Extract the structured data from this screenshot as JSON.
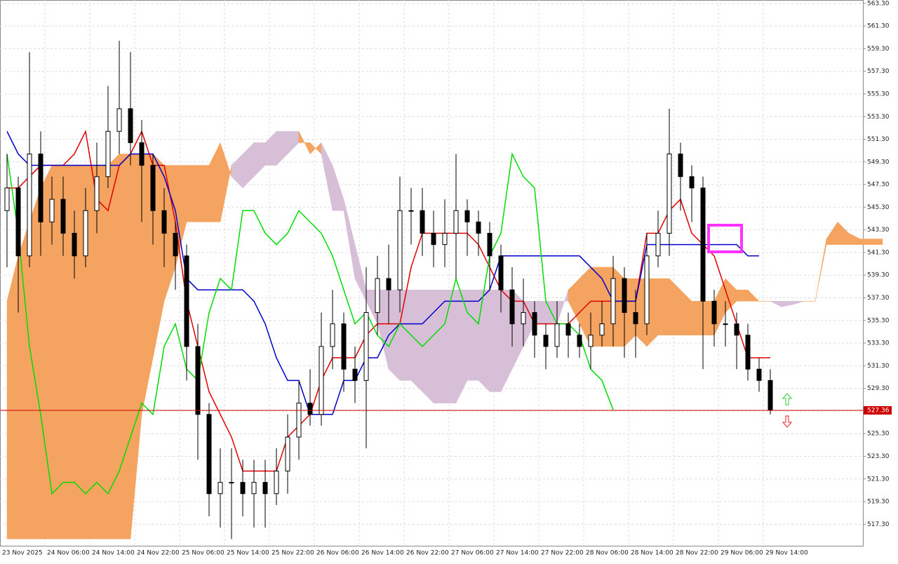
{
  "chart_data": {
    "type": "candlestick",
    "ylim": [
      515.4,
      563.6
    ],
    "yticks": [
      {
        "value": 517.3,
        "label": "517.30"
      },
      {
        "value": 519.3,
        "label": "519.30"
      },
      {
        "value": 521.3,
        "label": "521.30"
      },
      {
        "value": 523.3,
        "label": "523.30"
      },
      {
        "value": 525.3,
        "label": "525.30"
      },
      {
        "value": 527.3,
        "label": "527.30"
      },
      {
        "value": 529.3,
        "label": "529.30"
      },
      {
        "value": 531.3,
        "label": "531.30"
      },
      {
        "value": 533.3,
        "label": "533.30"
      },
      {
        "value": 535.3,
        "label": "535.30"
      },
      {
        "value": 537.3,
        "label": "537.30"
      },
      {
        "value": 539.3,
        "label": "539.30"
      },
      {
        "value": 541.3,
        "label": "541.30"
      },
      {
        "value": 543.3,
        "label": "543.30"
      },
      {
        "value": 545.3,
        "label": "545.30"
      },
      {
        "value": 547.3,
        "label": "547.30"
      },
      {
        "value": 549.3,
        "label": "549.30"
      },
      {
        "value": 551.3,
        "label": "551.30"
      },
      {
        "value": 553.3,
        "label": "553.30"
      },
      {
        "value": 555.3,
        "label": "555.30"
      },
      {
        "value": 557.3,
        "label": "557.30"
      },
      {
        "value": 559.3,
        "label": "559.30"
      },
      {
        "value": 561.3,
        "label": "561.30"
      },
      {
        "value": 563.3,
        "label": "563.30"
      }
    ],
    "xlabels": [
      "23 Nov 2025",
      "24 Nov 06:00",
      "24 Nov 14:00",
      "24 Nov 22:00",
      "25 Nov 06:00",
      "25 Nov 14:00",
      "25 Nov 22:00",
      "26 Nov 06:00",
      "26 Nov 14:00",
      "26 Nov 22:00",
      "27 Nov 06:00",
      "27 Nov 14:00",
      "27 Nov 22:00",
      "28 Nov 06:00",
      "28 Nov 14:00",
      "28 Nov 22:00",
      "29 Nov 06:00",
      "29 Nov 14:00"
    ],
    "grid": true,
    "candles": {
      "open": [
        545,
        547,
        541,
        550,
        544,
        546,
        543,
        541,
        545,
        548,
        552,
        554,
        551,
        549,
        545,
        543,
        541,
        533,
        527,
        520,
        521,
        521,
        520,
        521,
        520,
        522,
        525,
        528,
        527,
        533,
        535,
        531,
        530,
        536,
        539,
        538,
        545,
        545,
        543,
        542,
        543,
        545,
        544,
        543,
        541,
        538,
        535,
        536,
        534,
        533,
        535,
        534,
        533,
        534,
        535,
        539,
        536,
        535,
        541,
        543,
        550,
        548,
        547,
        537,
        535,
        535,
        534,
        531,
        530
      ],
      "high": [
        550,
        548,
        559,
        552,
        548,
        548,
        545,
        547,
        551,
        556,
        560,
        559,
        553,
        550,
        547,
        544,
        542,
        535,
        528,
        524,
        524,
        523,
        523,
        523,
        524,
        527,
        530,
        531,
        536,
        538,
        536,
        533,
        540,
        541,
        542,
        548,
        547,
        547,
        545,
        546,
        550,
        546,
        545,
        544,
        542,
        540,
        539,
        537,
        535,
        537,
        536,
        535,
        536,
        537,
        541,
        540,
        538,
        543,
        545,
        554,
        551,
        549,
        548,
        538,
        537,
        536,
        535,
        532,
        531
      ],
      "low": [
        540,
        536,
        540,
        541,
        542,
        541,
        539,
        540,
        543,
        547,
        550,
        549,
        544,
        542,
        540,
        538,
        530,
        523,
        518,
        517,
        516,
        518,
        517,
        517,
        519,
        520,
        523,
        526,
        526,
        531,
        529,
        528,
        524,
        534,
        535,
        536,
        542,
        541,
        540,
        540,
        539,
        541,
        541,
        538,
        536,
        533,
        533,
        532,
        531,
        532,
        532,
        532,
        531,
        533,
        533,
        532,
        532,
        534,
        540,
        541,
        545,
        544,
        531,
        533,
        533,
        531,
        530,
        529,
        527
      ],
      "close": [
        547,
        541,
        550,
        544,
        546,
        543,
        541,
        545,
        548,
        552,
        554,
        551,
        549,
        545,
        543,
        541,
        533,
        527,
        520,
        521,
        521,
        520,
        521,
        520,
        522,
        525,
        528,
        527,
        533,
        535,
        531,
        530,
        536,
        539,
        538,
        545,
        545,
        543,
        542,
        543,
        545,
        544,
        543,
        541,
        538,
        535,
        536,
        534,
        533,
        535,
        534,
        533,
        534,
        535,
        539,
        536,
        535,
        541,
        543,
        550,
        548,
        547,
        537,
        535,
        535,
        534,
        531,
        530,
        527.4
      ]
    },
    "lines": [
      {
        "color": "#e00000",
        "values": [
          547,
          547,
          548,
          549,
          549,
          549,
          550,
          552,
          546,
          545,
          549,
          550,
          552,
          549,
          549,
          544,
          537,
          533,
          529,
          527,
          525,
          522,
          522,
          522,
          522,
          525,
          526,
          527,
          530,
          532,
          532,
          532,
          534,
          535,
          535,
          535,
          540,
          543,
          543,
          543,
          543,
          543,
          542,
          540,
          538,
          537,
          537,
          535,
          535,
          535,
          535,
          536,
          537,
          537,
          537,
          537,
          537,
          543,
          543,
          545,
          546,
          543,
          542,
          541,
          538,
          535,
          532,
          532,
          532,
          null,
          null,
          null,
          null,
          null,
          null,
          null,
          null,
          null,
          null
        ]
      },
      {
        "color": "#0000cc",
        "values": [
          552,
          550,
          549,
          549,
          549,
          549,
          549,
          549,
          549,
          549,
          549,
          550,
          550,
          550,
          548,
          545,
          539,
          538,
          538,
          538,
          538,
          538,
          537,
          535,
          532,
          530,
          530,
          527,
          527,
          527,
          530,
          530,
          532,
          532,
          534,
          535,
          535,
          535,
          536,
          537,
          537,
          537,
          537,
          538,
          541,
          541,
          541,
          541,
          541,
          541,
          541,
          541,
          540,
          539,
          537,
          537,
          537,
          542,
          542,
          542,
          542,
          542,
          542,
          542,
          542,
          542,
          541,
          541,
          null,
          null,
          null,
          null,
          null,
          null,
          null,
          null,
          null,
          null,
          null
        ]
      },
      {
        "color": "#00dd00",
        "values": [
          550,
          543,
          533,
          527,
          520,
          521,
          521,
          520,
          521,
          520,
          522,
          525,
          528,
          527,
          533,
          535,
          531,
          530,
          536,
          539,
          538,
          545,
          545,
          543,
          542,
          543,
          545,
          544,
          543,
          541,
          538,
          535,
          536,
          534,
          533,
          535,
          534,
          533,
          534,
          535,
          539,
          536,
          535,
          541,
          543,
          550,
          548,
          547,
          537,
          535,
          535,
          534,
          531,
          530,
          527.4,
          null,
          null,
          null,
          null,
          null,
          null,
          null,
          null,
          null,
          null,
          null,
          null,
          null,
          null,
          null,
          null,
          null,
          null,
          null,
          null,
          null,
          null,
          null,
          null
        ]
      }
    ],
    "cloud": {
      "colors": [
        "#f4a460",
        "#d8bfd8"
      ],
      "span_a": [
        537,
        541,
        544,
        547,
        549,
        549,
        549,
        549,
        549,
        549,
        550,
        550,
        550,
        550,
        549,
        549,
        549,
        549,
        549,
        551,
        548,
        547,
        548,
        549,
        549,
        550,
        551,
        551,
        550,
        545,
        545,
        539,
        537,
        535,
        531,
        530,
        530,
        529,
        528,
        528,
        528,
        530,
        530,
        529,
        529,
        531,
        533,
        535,
        535,
        535,
        538,
        539,
        540,
        540,
        540,
        539,
        539,
        539,
        539,
        539,
        538,
        537,
        537,
        537,
        539,
        538,
        538,
        537,
        537,
        536.5,
        536.7,
        537,
        537,
        542.5,
        544,
        543,
        542.5,
        542.5,
        542.5
      ],
      "span_b": [
        516,
        516,
        516,
        516,
        516,
        516,
        516,
        516,
        516,
        516,
        516,
        516,
        527,
        532,
        537,
        540,
        544,
        544,
        544,
        544,
        549,
        550,
        551,
        551,
        552,
        552,
        552,
        550,
        551,
        549,
        546,
        542,
        538,
        538,
        538,
        538,
        538,
        538,
        538,
        538,
        538,
        538,
        538,
        538,
        538,
        538,
        537,
        537,
        537,
        537,
        537,
        535,
        533,
        533,
        533,
        533,
        534,
        533,
        534,
        534,
        534,
        534,
        534,
        534,
        536,
        537,
        537,
        537,
        537,
        537,
        537,
        537,
        537,
        542,
        542,
        542,
        542,
        542,
        542
      ]
    },
    "price_line": {
      "value": 527.36,
      "color": "#cc0000"
    }
  }
}
